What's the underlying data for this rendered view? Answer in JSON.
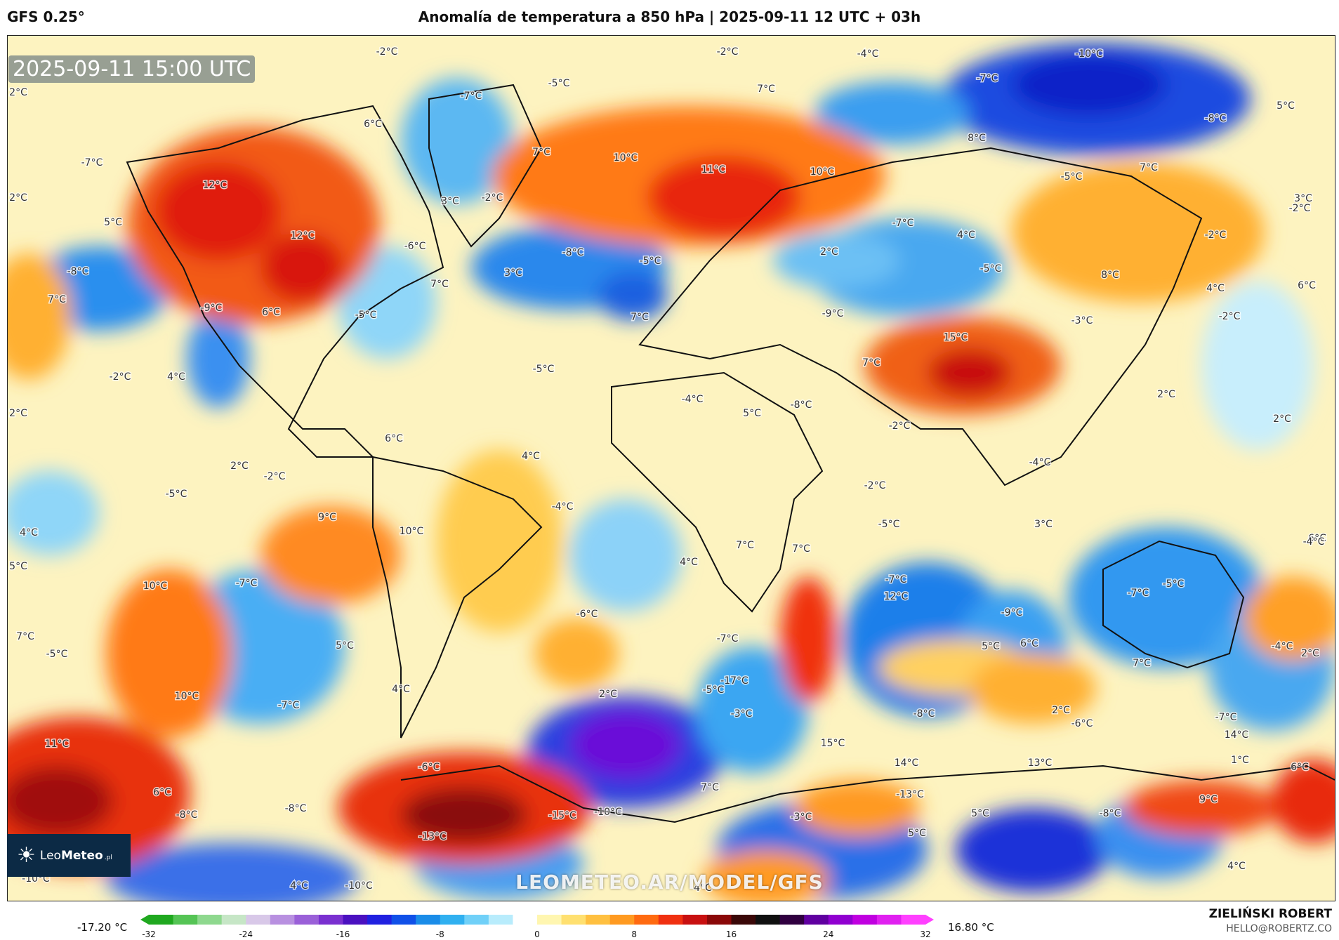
{
  "header": {
    "model": "GFS 0.25°",
    "title": "Anomalía de temperatura a 850 hPa | 2025-09-11 12 UTC + 03h"
  },
  "map": {
    "valid_time": "2025-09-11 15:00 UTC",
    "watermark": "LEOMETEO.AR/MODEL/GFS",
    "labels": [
      "-2°C",
      "-2°C",
      "-4°C",
      "-10°C",
      "2°C",
      "-5°C",
      "-7°C",
      "7°C",
      "-7°C",
      "5°C",
      "6°C",
      "-8°C",
      "-7°C",
      "7°C",
      "10°C",
      "8°C",
      "2°C",
      "12°C",
      "11°C",
      "10°C",
      "3°C",
      "-2°C",
      "-5°C",
      "7°C",
      "3°C",
      "-2°C",
      "5°C",
      "12°C",
      "-7°C",
      "4°C",
      "-2°C",
      "-6°C",
      "-8°C",
      "-5°C",
      "2°C",
      "-5°C",
      "8°C",
      "-8°C",
      "7°C",
      "3°C",
      "4°C",
      "6°C",
      "7°C",
      "-9°C",
      "6°C",
      "-5°C",
      "7°C",
      "7°C",
      "-9°C",
      "-3°C",
      "15°C",
      "-2°C",
      "-2°C",
      "4°C",
      "-5°C",
      "-4°C",
      "-8°C",
      "2°C",
      "2°C",
      "5°C",
      "-2°C",
      "2°C",
      "6°C",
      "4°C",
      "2°C",
      "-2°C",
      "-4°C",
      "-5°C",
      "-2°C",
      "4°C",
      "-5°C",
      "9°C",
      "10°C",
      "-4°C",
      "7°C",
      "7°C",
      "6°C",
      "3°C",
      "-4°C",
      "5°C",
      "10°C",
      "-7°C",
      "-7°C",
      "4°C",
      "12°C",
      "-7°C",
      "-9°C",
      "-5°C",
      "7°C",
      "-6°C",
      "-7°C",
      "6°C",
      "-4°C",
      "5°C",
      "-5°C",
      "7°C",
      "5°C",
      "-6°C",
      "2°C",
      "-17°C",
      "2°C",
      "-5°C",
      "10°C",
      "4°C",
      "-7°C",
      "-3°C",
      "-8°C",
      "2°C",
      "-7°C",
      "14°C",
      "11°C",
      "15°C",
      "1°C",
      "14°C",
      "13°C",
      "6°C",
      "-6°C",
      "7°C",
      "6°C",
      "-8°C",
      "-8°C",
      "9°C",
      "-13°C",
      "-15°C",
      "-10°C",
      "-3°C",
      "5°C",
      "-8°C",
      "-13°C",
      "5°C",
      "4°C",
      "-10°C",
      "4°C",
      "-10°C",
      "4°C"
    ]
  },
  "logo": {
    "brand_light": "Leo",
    "brand_bold": "Meteo",
    "tld": ".pl"
  },
  "legend": {
    "min_label": "-17.20 °C",
    "max_label": "16.80 °C",
    "ticks": [
      "-32",
      "-24",
      "-16",
      "-8",
      "0",
      "8",
      "16",
      "24",
      "32"
    ],
    "colors": [
      "#1fa81f",
      "#55c455",
      "#8ed88e",
      "#c6e6c6",
      "#d8c8e8",
      "#b890e0",
      "#9a60d8",
      "#7a30d0",
      "#4a10c0",
      "#2020e0",
      "#1050e8",
      "#1a8ce8",
      "#30b0f0",
      "#70d0f8",
      "#b8ecfc",
      "#ffffff",
      "#fff6b0",
      "#ffe070",
      "#ffc040",
      "#ff9a20",
      "#ff6a10",
      "#f03010",
      "#c81010",
      "#8a0808",
      "#3a0808",
      "#101010",
      "#300040",
      "#6000a0",
      "#9000d0",
      "#c000e0",
      "#e020f0",
      "#ff40ff"
    ],
    "tick_min": -32,
    "tick_max": 32
  },
  "footer": {
    "author": "ZIELIŃSKI ROBERT",
    "email": "HELLO@ROBERTZ.CO"
  }
}
